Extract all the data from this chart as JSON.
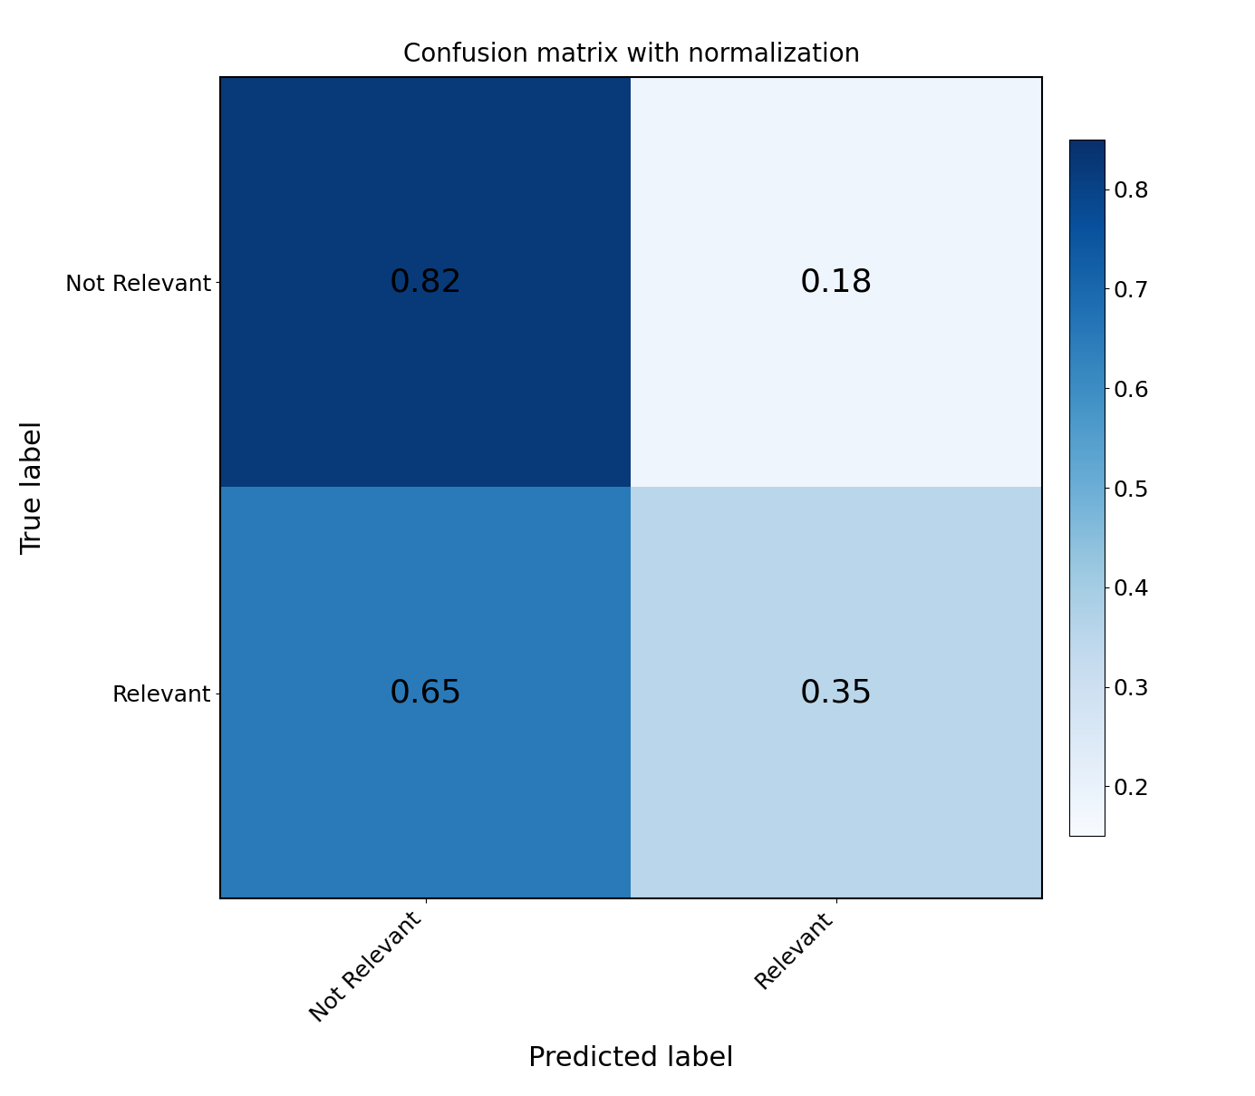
{
  "title": "Confusion matrix with normalization",
  "matrix": [
    [
      0.82,
      0.18
    ],
    [
      0.65,
      0.35
    ]
  ],
  "classes": [
    "Not Relevant",
    "Relevant"
  ],
  "xlabel": "Predicted label",
  "ylabel": "True label",
  "cmap": "Blues",
  "vmin": 0.15,
  "vmax": 0.85,
  "text_color": "black",
  "colorbar_ticks": [
    0.2,
    0.3,
    0.4,
    0.5,
    0.6,
    0.7,
    0.8
  ],
  "text_fontsize": 26,
  "label_fontsize": 22,
  "title_fontsize": 20,
  "tick_fontsize": 18,
  "colorbar_tick_fontsize": 18
}
